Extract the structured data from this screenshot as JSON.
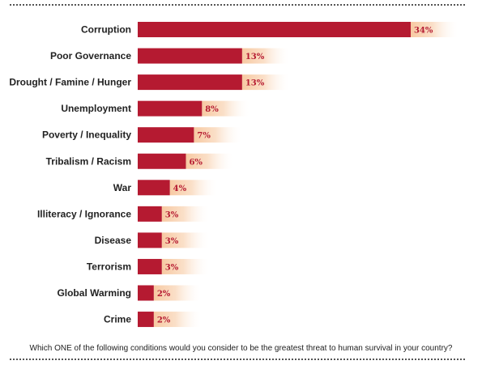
{
  "chart_data": {
    "type": "bar",
    "orientation": "horizontal",
    "categories": [
      "Corruption",
      "Poor Governance",
      "Drought / Famine / Hunger",
      "Unemployment",
      "Poverty / Inequality",
      "Tribalism / Racism",
      "War",
      "Illiteracy / Ignorance",
      "Disease",
      "Terrorism",
      "Global Warming",
      "Crime"
    ],
    "values": [
      34,
      13,
      13,
      8,
      7,
      6,
      4,
      3,
      3,
      3,
      2,
      2
    ],
    "value_labels": [
      "34%",
      "13%",
      "13%",
      "8%",
      "7%",
      "6%",
      "4%",
      "3%",
      "3%",
      "3%",
      "2%",
      "2%"
    ],
    "title": "",
    "xlabel": "",
    "ylabel": "",
    "xlim": [
      0,
      34
    ],
    "grid": false,
    "legend": "none",
    "colors": {
      "bar": "#b51a31",
      "label_bg": "#f7c9a2",
      "value_text": "#b51a31"
    }
  },
  "footer": {
    "question": "Which ONE of the following conditions would you consider to be the greatest threat to human survival in your country?"
  }
}
